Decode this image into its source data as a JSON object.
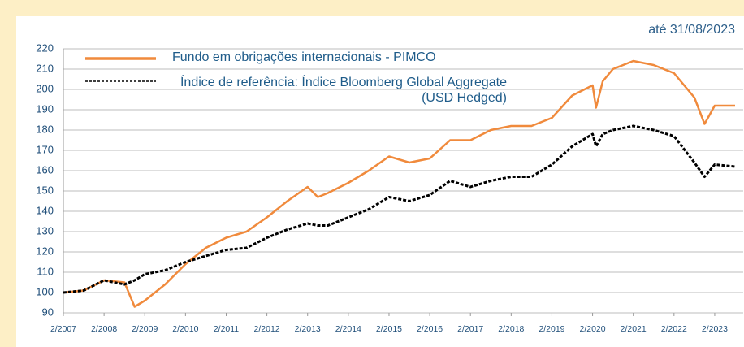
{
  "chart_data": {
    "type": "line",
    "subtitle": "até 31/08/2023",
    "x": [
      "2/2007",
      "8/2007",
      "2/2008",
      "8/2008",
      "11/2008",
      "2/2009",
      "8/2009",
      "2/2010",
      "8/2010",
      "2/2011",
      "8/2011",
      "2/2012",
      "8/2012",
      "2/2013",
      "5/2013",
      "8/2013",
      "2/2014",
      "8/2014",
      "2/2015",
      "8/2015",
      "2/2016",
      "8/2016",
      "2/2017",
      "8/2017",
      "2/2018",
      "8/2018",
      "2/2019",
      "8/2019",
      "2/2020",
      "3/2020",
      "5/2020",
      "8/2020",
      "2/2021",
      "8/2021",
      "2/2022",
      "8/2022",
      "11/2022",
      "2/2023",
      "8/2023"
    ],
    "series": [
      {
        "name": "Fundo em obrigações internacionais - PIMCO",
        "color": "#f08a3c",
        "dash": false,
        "values": [
          100,
          101,
          106,
          105,
          93,
          96,
          104,
          114,
          122,
          127,
          130,
          137,
          145,
          152,
          147,
          149,
          154,
          160,
          167,
          164,
          166,
          175,
          175,
          180,
          182,
          182,
          186,
          197,
          202,
          191,
          204,
          210,
          214,
          212,
          208,
          196,
          183,
          192,
          192
        ]
      },
      {
        "name": "Índice de referência: Índice Bloomberg Global Aggregate (USD Hedged)",
        "color": "#000000",
        "dash": true,
        "values": [
          100,
          101,
          106,
          104,
          106,
          109,
          111,
          115,
          118,
          121,
          122,
          127,
          131,
          134,
          133,
          133,
          137,
          141,
          147,
          145,
          148,
          155,
          152,
          155,
          157,
          157,
          163,
          172,
          178,
          172,
          178,
          180,
          182,
          180,
          177,
          164,
          157,
          163,
          162
        ]
      }
    ],
    "xlim": [
      "2/2007",
      "8/2023"
    ],
    "xticks": [
      "2/2007",
      "2/2008",
      "2/2009",
      "2/2010",
      "2/2011",
      "2/2012",
      "2/2013",
      "2/2014",
      "2/2015",
      "2/2016",
      "2/2017",
      "2/2018",
      "2/2019",
      "2/2020",
      "2/2021",
      "2/2022",
      "2/2023"
    ],
    "ylim": [
      90,
      220
    ],
    "yticks": [
      90,
      100,
      110,
      120,
      130,
      140,
      150,
      160,
      170,
      180,
      190,
      200,
      210,
      220
    ],
    "grid": true
  }
}
